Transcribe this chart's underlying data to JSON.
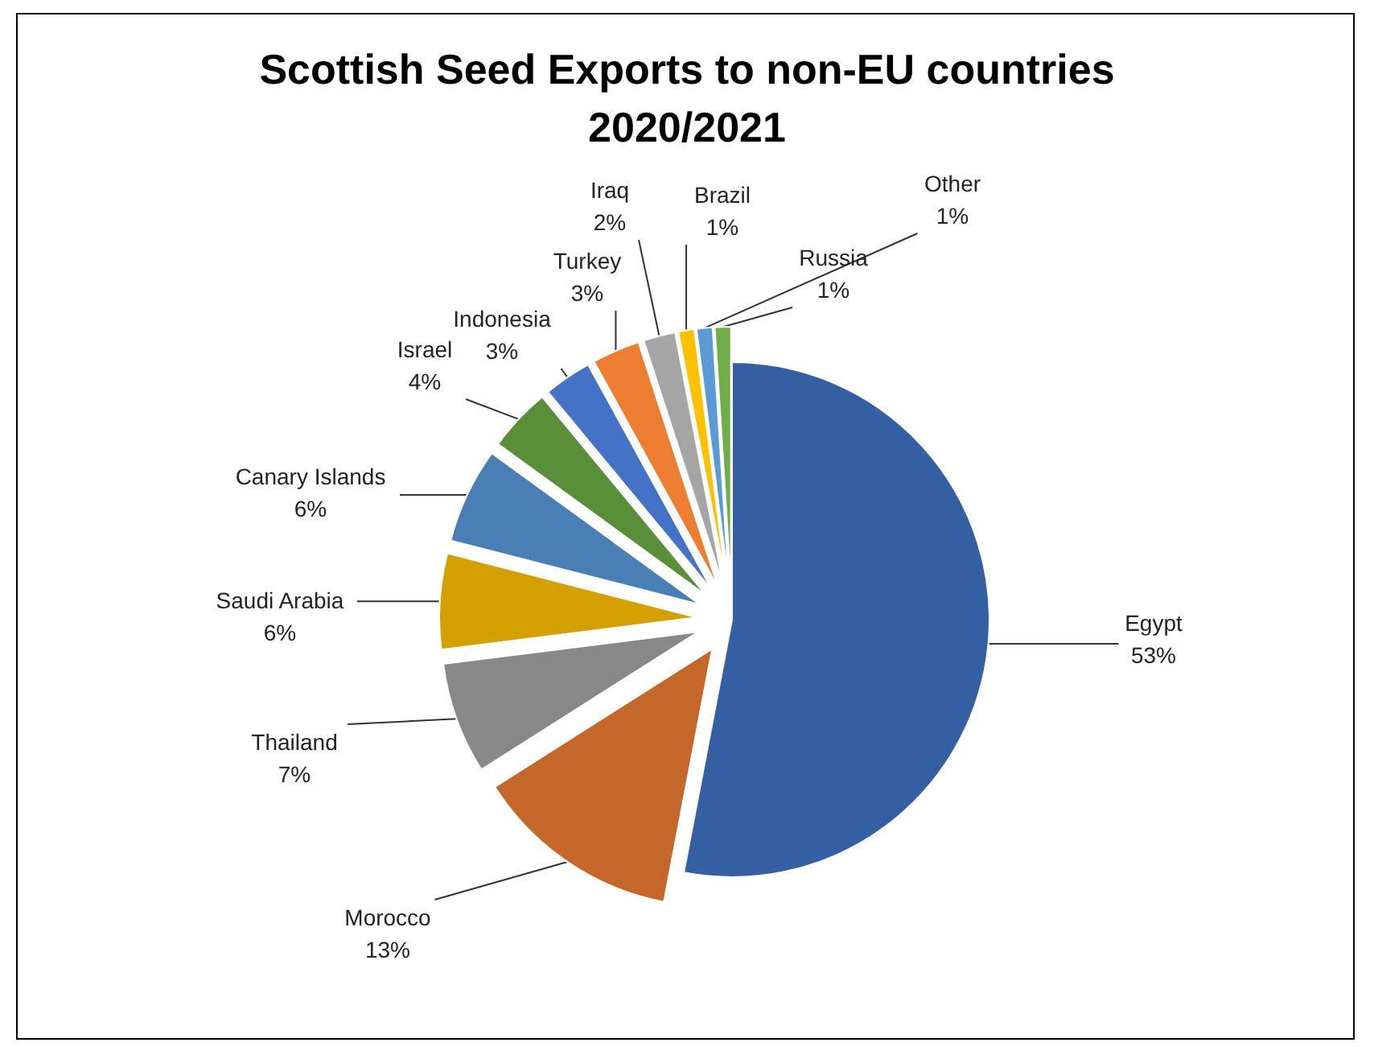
{
  "chart_data": {
    "type": "pie",
    "title": "Scottish Seed Exports to non-EU countries\n2020/2021",
    "categories": [
      "Egypt",
      "Morocco",
      "Thailand",
      "Saudi Arabia",
      "Canary Islands",
      "Israel",
      "Indonesia",
      "Turkey",
      "Iraq",
      "Brazil",
      "Other",
      "Russia"
    ],
    "values": [
      53,
      13,
      7,
      6,
      6,
      4,
      3,
      3,
      2,
      1,
      1,
      1
    ],
    "value_labels": [
      "53%",
      "13%",
      "7%",
      "6%",
      "6%",
      "4%",
      "3%",
      "3%",
      "2%",
      "1%",
      "1%",
      "1%"
    ],
    "colors": [
      "#355fa3",
      "#c5672a",
      "#888888",
      "#d4a000",
      "#4a7fb5",
      "#5a8f3a",
      "#4472c4",
      "#ed7d31",
      "#a5a5a5",
      "#ffc000",
      "#5b9bd5",
      "#70ad47"
    ],
    "legend": false
  }
}
